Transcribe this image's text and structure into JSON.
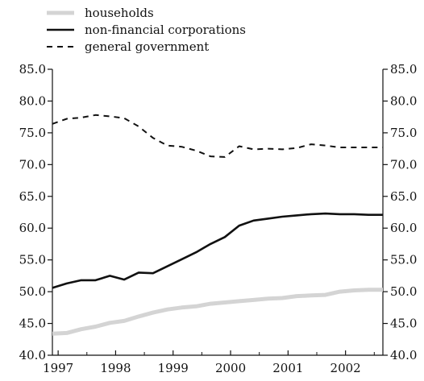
{
  "chart_data": {
    "type": "line",
    "title": "",
    "xlabel": "",
    "ylabel": "",
    "ylim": [
      40.0,
      85.0
    ],
    "y_ticks": [
      "40.0",
      "45.0",
      "50.0",
      "55.0",
      "60.0",
      "65.0",
      "70.0",
      "75.0",
      "80.0",
      "85.0"
    ],
    "y_tick_values": [
      40,
      45,
      50,
      55,
      60,
      65,
      70,
      75,
      80,
      85
    ],
    "y_axis_both_sides": true,
    "x_ticks": [
      "1997",
      "1998",
      "1999",
      "2000",
      "2001",
      "2002"
    ],
    "x_tick_values": [
      1997.0,
      1998.0,
      1999.0,
      2000.0,
      2001.0,
      2002.0
    ],
    "xlim": [
      1996.9,
      2002.65
    ],
    "grid": false,
    "legend_position": "top-left",
    "series": [
      {
        "name": "households",
        "style": "solid",
        "color": "#d4d4d4",
        "x": [
          1996.9,
          1997.15,
          1997.4,
          1997.65,
          1997.9,
          1998.15,
          1998.4,
          1998.65,
          1998.9,
          1999.15,
          1999.4,
          1999.65,
          1999.9,
          2000.15,
          2000.4,
          2000.65,
          2000.9,
          2001.15,
          2001.4,
          2001.65,
          2001.9,
          2002.15,
          2002.4,
          2002.65
        ],
        "values": [
          43.4,
          43.5,
          44.1,
          44.5,
          45.1,
          45.4,
          46.1,
          46.7,
          47.2,
          47.5,
          47.7,
          48.1,
          48.3,
          48.5,
          48.7,
          48.9,
          49.0,
          49.3,
          49.4,
          49.5,
          50.0,
          50.2,
          50.3,
          50.3
        ]
      },
      {
        "name": "non-financial corporations",
        "style": "solid",
        "color": "#111111",
        "x": [
          1996.9,
          1997.15,
          1997.4,
          1997.65,
          1997.9,
          1998.15,
          1998.4,
          1998.65,
          1998.9,
          1999.15,
          1999.4,
          1999.65,
          1999.9,
          2000.15,
          2000.4,
          2000.65,
          2000.9,
          2001.15,
          2001.4,
          2001.65,
          2001.9,
          2002.15,
          2002.4,
          2002.65
        ],
        "values": [
          50.6,
          51.3,
          51.8,
          51.8,
          52.5,
          51.9,
          53.0,
          52.9,
          54.0,
          55.1,
          56.2,
          57.5,
          58.6,
          60.4,
          61.2,
          61.5,
          61.8,
          62.0,
          62.2,
          62.3,
          62.2,
          62.2,
          62.1,
          62.1
        ]
      },
      {
        "name": "general government",
        "style": "dashed",
        "color": "#111111",
        "x": [
          1996.9,
          1997.15,
          1997.4,
          1997.65,
          1997.9,
          1998.15,
          1998.4,
          1998.65,
          1998.9,
          1999.15,
          1999.4,
          1999.65,
          1999.9,
          2000.15,
          2000.4,
          2000.65,
          2000.9,
          2001.15,
          2001.4,
          2001.65,
          2001.9,
          2002.15,
          2002.4,
          2002.65
        ],
        "values": [
          76.4,
          77.2,
          77.4,
          77.8,
          77.6,
          77.3,
          76.0,
          74.2,
          73.0,
          72.8,
          72.2,
          71.3,
          71.2,
          72.9,
          72.4,
          72.5,
          72.4,
          72.6,
          73.2,
          73.0,
          72.7,
          72.7,
          72.7,
          72.7
        ]
      }
    ]
  }
}
